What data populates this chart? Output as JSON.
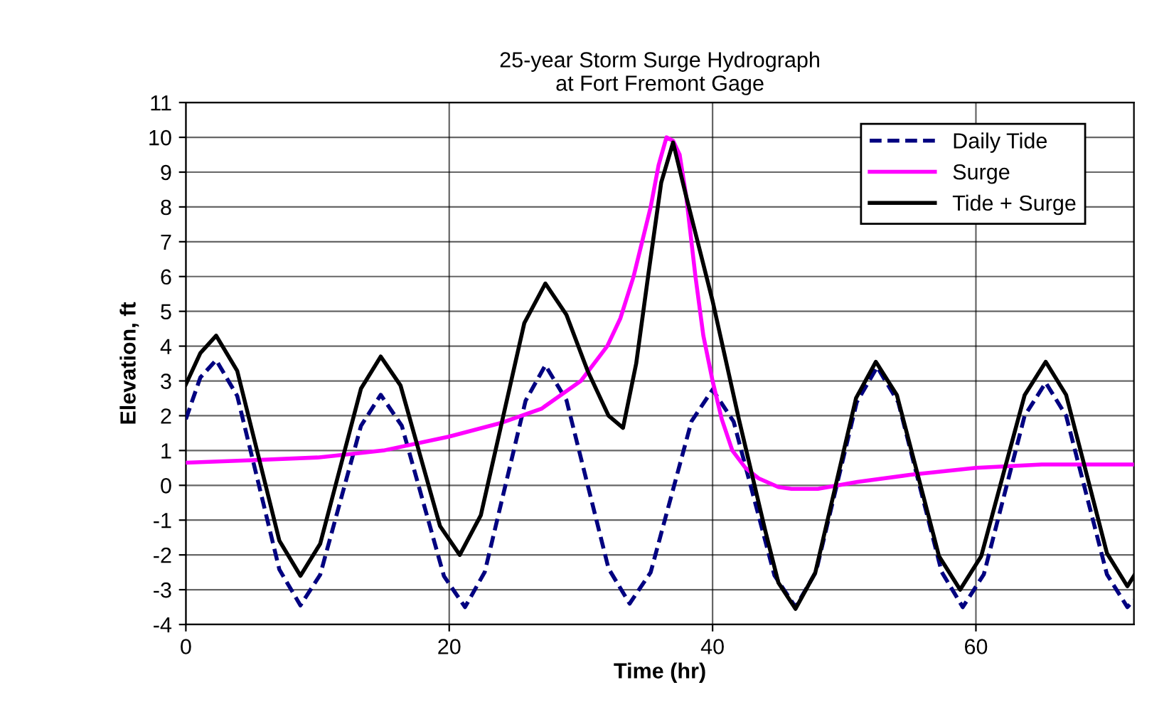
{
  "chart_data": {
    "type": "line",
    "title": "25-year Storm Surge Hydrograph\nat Fort Fremont Gage",
    "xlabel": "Time (hr)",
    "ylabel": "Elevation, ft",
    "xlim": [
      0,
      72
    ],
    "xticks": [
      0,
      20,
      40,
      60
    ],
    "ylim": [
      -4,
      11
    ],
    "yticks": [
      -4,
      -3,
      -2,
      -1,
      0,
      1,
      2,
      3,
      4,
      5,
      6,
      7,
      8,
      9,
      10,
      11
    ],
    "grid": true,
    "legend": "top right",
    "series": [
      {
        "name": "Daily Tide",
        "color": "#000080",
        "line_style": "dashed",
        "x": [
          0,
          1.1,
          2.3,
          3.9,
          5.5,
          7.1,
          8.7,
          10.2,
          11.75,
          13.3,
          14.8,
          16.4,
          18,
          19.6,
          21.2,
          22.7,
          24.25,
          25.8,
          27.3,
          28.9,
          30.5,
          32.1,
          33.7,
          35.3,
          36.85,
          38.4,
          40,
          41.6,
          43.15,
          44.7,
          46.3,
          47.85,
          49.4,
          50.95,
          52.5,
          54.1,
          55.75,
          57.4,
          59,
          60.6,
          62.15,
          63.7,
          65.3,
          66.85,
          68.4,
          69.95,
          71.5,
          72
        ],
        "values": [
          1.9,
          3.1,
          3.6,
          2.57,
          0.08,
          -2.42,
          -3.45,
          -2.57,
          -0.43,
          1.71,
          2.6,
          1.71,
          -0.45,
          -2.61,
          -3.5,
          -2.49,
          -0.03,
          2.43,
          3.45,
          2.45,
          0.03,
          -2.39,
          -3.4,
          -2.5,
          -0.33,
          1.84,
          2.75,
          1.83,
          -0.38,
          -2.59,
          -3.5,
          -2.49,
          -0.05,
          2.39,
          3.4,
          2.39,
          -0.05,
          -2.49,
          -3.5,
          -2.56,
          -0.28,
          2.0,
          2.95,
          2.0,
          -0.28,
          -2.56,
          -3.5,
          -3.3
        ]
      },
      {
        "name": "Surge",
        "color": "#ff00ff",
        "line_style": "solid",
        "x": [
          0,
          5,
          10,
          15,
          20,
          24,
          27,
          30,
          32,
          33,
          34,
          35.3,
          35.9,
          36.5,
          37,
          37.5,
          38,
          38.7,
          39.3,
          40,
          40.7,
          41.5,
          42.5,
          43.5,
          45,
          46,
          48,
          51,
          55,
          60,
          65,
          72
        ],
        "values": [
          0.65,
          0.72,
          0.8,
          1.0,
          1.4,
          1.8,
          2.2,
          3.0,
          4.0,
          4.8,
          6.0,
          8.0,
          9.2,
          10.0,
          9.9,
          9.5,
          8.3,
          6.0,
          4.3,
          3.0,
          1.9,
          1.0,
          0.5,
          0.2,
          -0.05,
          -0.1,
          -0.1,
          0.1,
          0.3,
          0.5,
          0.6,
          0.6
        ]
      },
      {
        "name": "Tide + Surge",
        "color": "#000000",
        "line_style": "solid",
        "x": [
          0,
          1.1,
          2.3,
          3.9,
          5.5,
          7.1,
          8.7,
          10.2,
          11.75,
          13.3,
          14.8,
          16.3,
          17.8,
          19.3,
          20.8,
          22.4,
          24.05,
          25.7,
          27.3,
          28.9,
          30.5,
          32.1,
          33.2,
          34.2,
          35.1,
          36.1,
          37,
          38,
          39,
          40,
          41,
          42,
          43,
          44,
          45,
          46.3,
          47.8,
          49.35,
          50.9,
          52.4,
          54,
          55.6,
          57.2,
          58.8,
          60.4,
          62.05,
          63.7,
          65.3,
          66.85,
          68.4,
          69.95,
          71.5,
          72
        ],
        "values": [
          2.9,
          3.8,
          4.3,
          3.29,
          0.85,
          -1.59,
          -2.6,
          -1.68,
          0.55,
          2.78,
          3.7,
          2.87,
          0.85,
          -1.17,
          -2.0,
          -0.86,
          1.9,
          4.66,
          5.8,
          4.9,
          3.3,
          2.0,
          1.65,
          3.5,
          6.0,
          8.7,
          9.85,
          8.3,
          6.8,
          5.3,
          3.6,
          1.9,
          0.3,
          -1.3,
          -2.8,
          -3.55,
          -2.51,
          0,
          2.51,
          3.55,
          2.59,
          0.28,
          -2.04,
          -3.0,
          -2.04,
          0.28,
          2.59,
          3.55,
          2.6,
          0.33,
          -1.95,
          -2.9,
          -2.6
        ]
      }
    ]
  }
}
